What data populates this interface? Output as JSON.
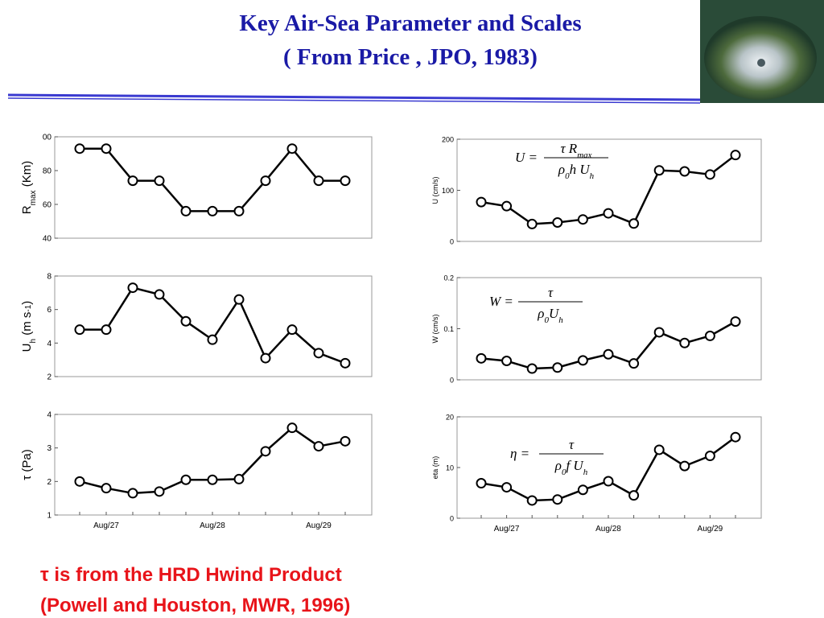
{
  "header": {
    "title": "Key Air-Sea Parameter and Scales",
    "subtitle": "( From Price , JPO,  1983)"
  },
  "chart_data": [
    {
      "type": "line",
      "ylabel": [
        "R",
        "max",
        " (Km)"
      ],
      "ylabel_script": [
        "sub"
      ],
      "values": [
        93,
        93,
        74,
        74,
        56,
        56,
        56,
        74,
        93,
        74,
        74
      ],
      "ylim": [
        40,
        100
      ],
      "yticks": [
        40,
        60,
        80,
        {
          "value": 100,
          "label": "00"
        }
      ]
    },
    {
      "type": "line",
      "ylabel": [
        "U",
        "h",
        " (m s",
        "-1",
        ")"
      ],
      "ylabel_script": [
        "sub",
        "sup"
      ],
      "values": [
        4.8,
        4.8,
        7.3,
        6.9,
        5.3,
        4.2,
        6.6,
        3.1,
        4.8,
        3.4,
        2.8
      ],
      "ylim": [
        2,
        8
      ],
      "yticks": [
        2,
        4,
        6,
        8
      ]
    },
    {
      "type": "line",
      "ylabel": [
        "τ (Pa)"
      ],
      "values": [
        2.0,
        1.8,
        1.65,
        1.7,
        2.05,
        2.05,
        2.07,
        2.9,
        3.6,
        3.05,
        3.2
      ],
      "ylim": [
        1,
        4
      ],
      "yticks": [
        1,
        2,
        3,
        4
      ],
      "categories": [
        null,
        "Aug/27",
        null,
        null,
        null,
        "Aug/28",
        null,
        null,
        null,
        "Aug/29",
        null
      ]
    },
    {
      "type": "line",
      "ylabel": [
        "U (cm/s)"
      ],
      "formula": {
        "lhs": "U =",
        "numerator": [
          "τ R",
          "max"
        ],
        "denominator": [
          "ρ",
          "0",
          "h U",
          "h"
        ]
      },
      "values": [
        77,
        69,
        34,
        37,
        43,
        55,
        35,
        139,
        137,
        131,
        169
      ],
      "ylim": [
        0,
        200
      ],
      "yticks": [
        0,
        100,
        200
      ]
    },
    {
      "type": "line",
      "ylabel": [
        "W (cm/s)"
      ],
      "formula": {
        "lhs": "W =",
        "numerator": [
          "τ"
        ],
        "denominator": [
          "ρ",
          "0",
          "U",
          "h"
        ]
      },
      "values": [
        0.042,
        0.037,
        0.022,
        0.024,
        0.038,
        0.05,
        0.032,
        0.093,
        0.072,
        0.086,
        0.114
      ],
      "ylim": [
        0,
        0.2
      ],
      "yticks": [
        0,
        0.1,
        0.2
      ]
    },
    {
      "type": "line",
      "ylabel": [
        "eta (m)"
      ],
      "formula": {
        "lhs": "η =",
        "numerator": [
          "τ"
        ],
        "denominator": [
          "ρ",
          "0",
          "f U",
          "h"
        ]
      },
      "values": [
        6.9,
        6.1,
        3.5,
        3.7,
        5.6,
        7.3,
        4.5,
        13.5,
        10.3,
        12.3,
        16
      ],
      "ylim": [
        0,
        20
      ],
      "yticks": [
        0,
        10,
        20
      ],
      "categories": [
        null,
        "Aug/27",
        null,
        null,
        null,
        "Aug/28",
        null,
        null,
        null,
        "Aug/29",
        null
      ]
    }
  ],
  "footer": {
    "lines": [
      "τ is from the HRD Hwind Product",
      "(Powell and Houston, MWR, 1996)"
    ]
  }
}
